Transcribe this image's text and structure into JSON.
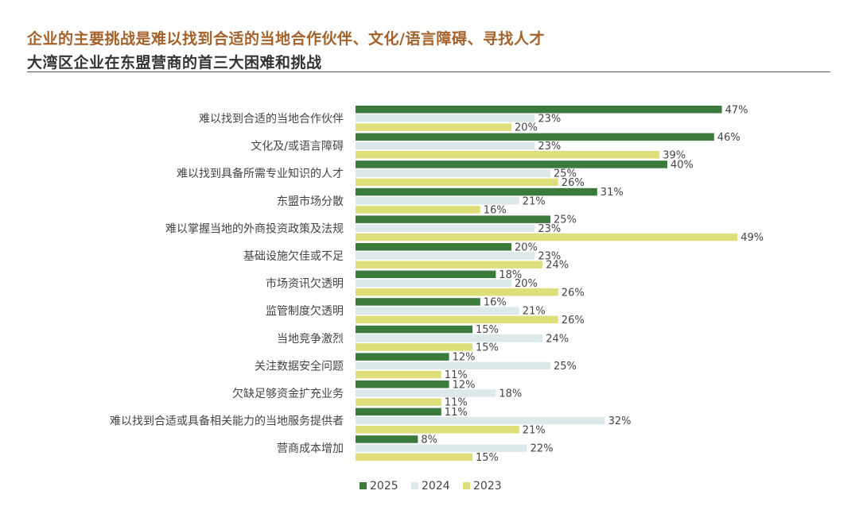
{
  "header": {
    "title": "企业的主要挑战是难以找到合适的当地合作伙伴、文化/语言障碍、寻找人才",
    "subtitle": "大湾区企业在东盟营商的首三大困难和挑战"
  },
  "colors": {
    "s2025": "#3a7a3a",
    "s2024": "#dde8ea",
    "s2023": "#dede7a"
  },
  "chart_data": {
    "type": "bar",
    "orientation": "horizontal",
    "title": "大湾区企业在东盟营商的首三大困难和挑战",
    "value_suffix": "%",
    "categories": [
      "难以找到合适的当地合作伙伴",
      "文化及/或语言障碍",
      "难以找到具备所需专业知识的人才",
      "东盟市场分散",
      "难以掌握当地的外商投资政策及法规",
      "基础设施欠佳或不足",
      "市场资讯欠透明",
      "监管制度欠透明",
      "当地竞争激烈",
      "关注数据安全问题",
      "欠缺足够资金扩充业务",
      "难以找到合适或具备相关能力的当地服务提供者",
      "营商成本增加"
    ],
    "series": [
      {
        "name": "2025",
        "values": [
          47,
          46,
          40,
          31,
          25,
          20,
          18,
          16,
          15,
          12,
          12,
          11,
          8
        ]
      },
      {
        "name": "2024",
        "values": [
          23,
          23,
          25,
          21,
          23,
          23,
          20,
          21,
          24,
          25,
          18,
          32,
          22
        ]
      },
      {
        "name": "2023",
        "values": [
          20,
          39,
          26,
          16,
          49,
          24,
          26,
          26,
          15,
          11,
          11,
          21,
          15
        ]
      }
    ],
    "legend": [
      "2025",
      "2024",
      "2023"
    ],
    "legend_position": "bottom"
  }
}
